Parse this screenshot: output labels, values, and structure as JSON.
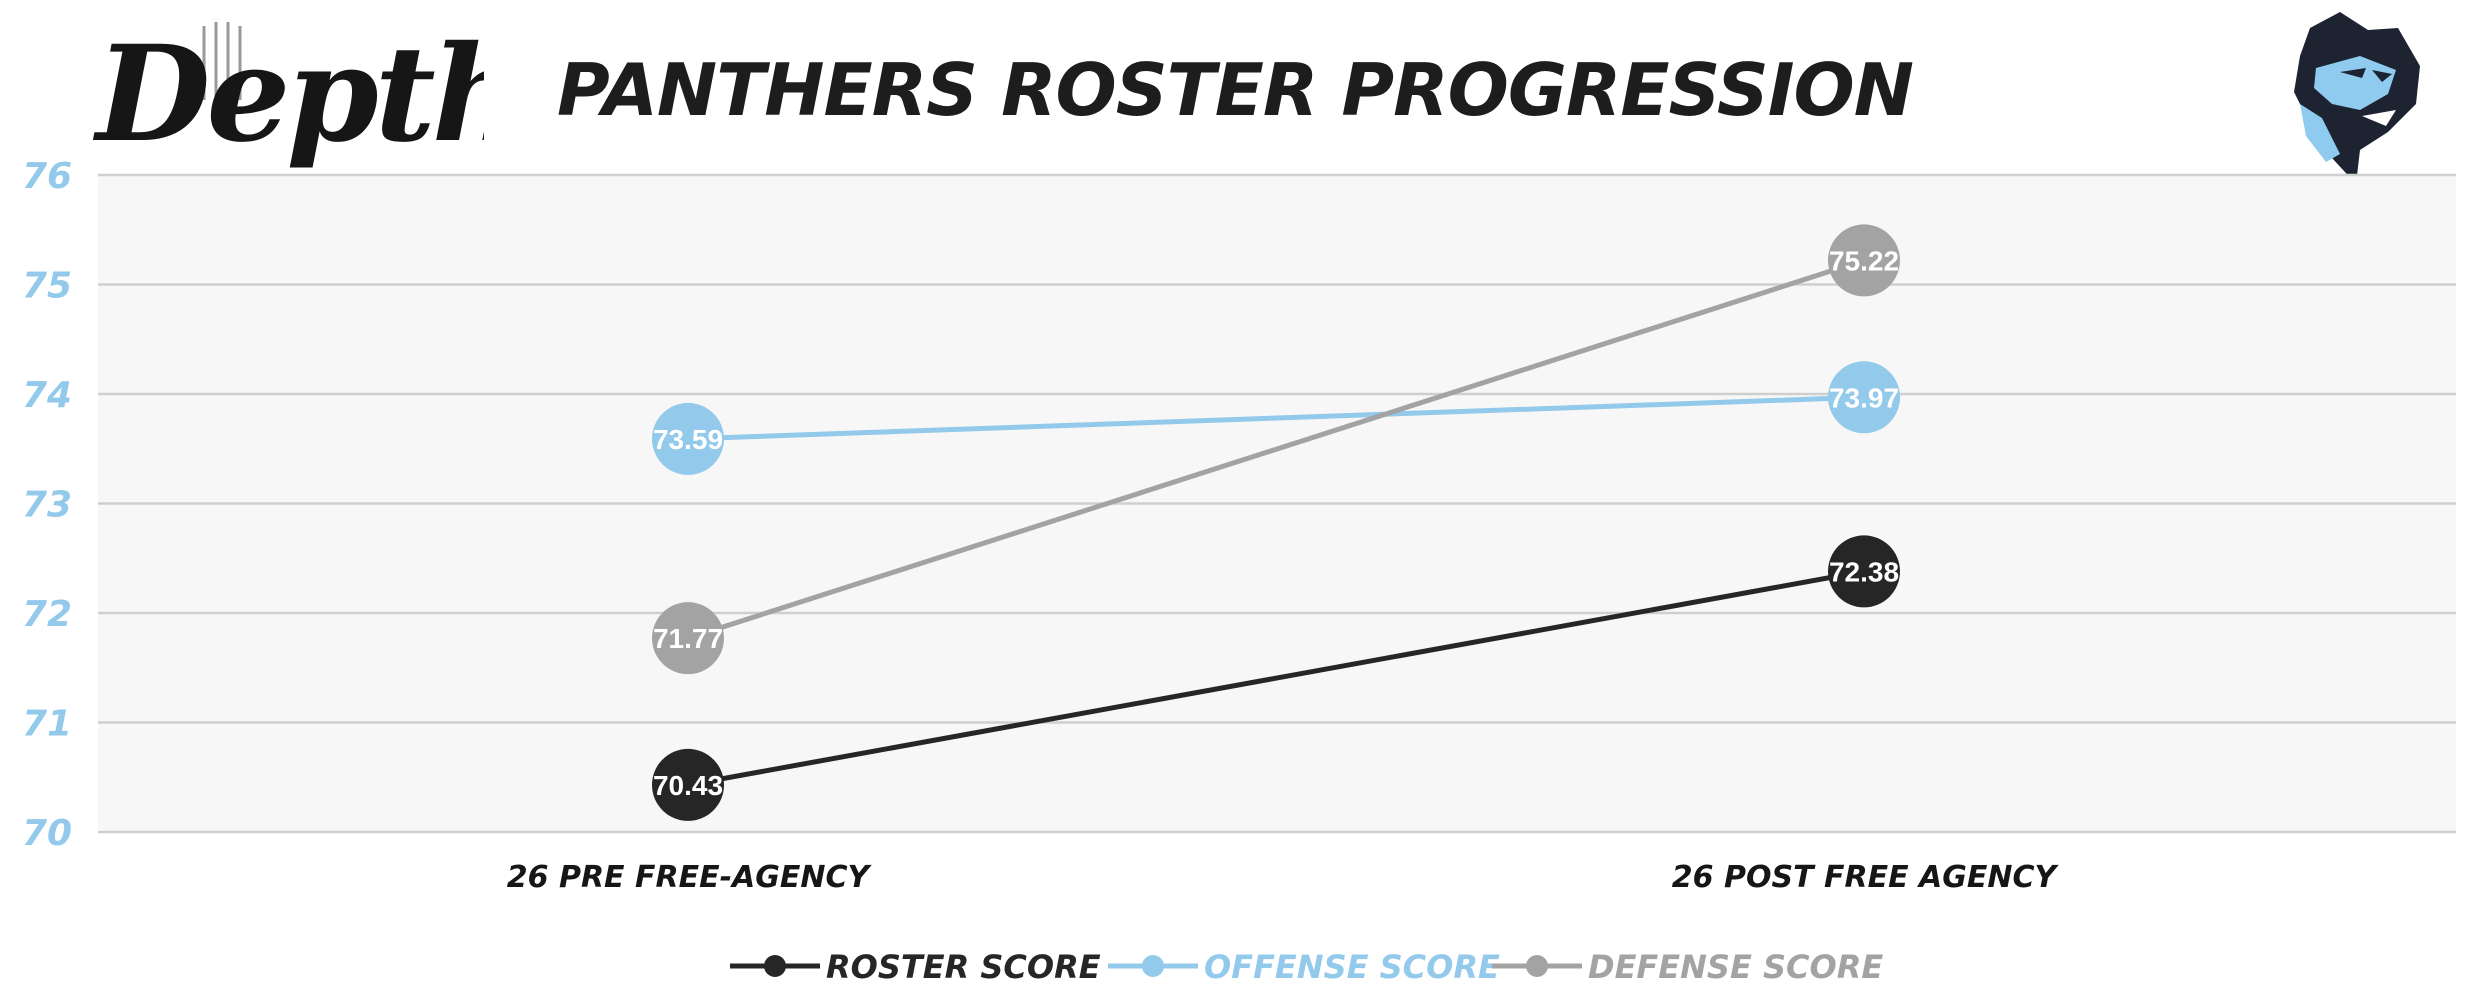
{
  "header": {
    "brand_logo_text": "Depth",
    "title": "PANTHERS ROSTER PROGRESSION",
    "team_logo": "panther-head-icon"
  },
  "colors": {
    "roster": "#262626",
    "offense": "#93c9ea",
    "defense": "#a3a3a3",
    "axis_tick": "#93c9ea",
    "plot_bg": "#f7f7f7",
    "grid": "#cfcfcf"
  },
  "chart_data": {
    "type": "line",
    "title": "PANTHERS ROSTER PROGRESSION",
    "categories": [
      "26 PRE FREE-AGENCY",
      "26 POST FREE AGENCY"
    ],
    "series": [
      {
        "name": "ROSTER SCORE",
        "values": [
          70.43,
          72.38
        ],
        "color": "#262626"
      },
      {
        "name": "OFFENSE SCORE",
        "values": [
          73.59,
          73.97
        ],
        "color": "#93c9ea"
      },
      {
        "name": "DEFENSE SCORE",
        "values": [
          71.77,
          75.22
        ],
        "color": "#a3a3a3"
      }
    ],
    "ylim": [
      70,
      76
    ],
    "yticks": [
      "70",
      "71",
      "72",
      "73",
      "74",
      "75",
      "76"
    ],
    "grid": true,
    "data_labels": true,
    "legend_position": "bottom-center"
  }
}
